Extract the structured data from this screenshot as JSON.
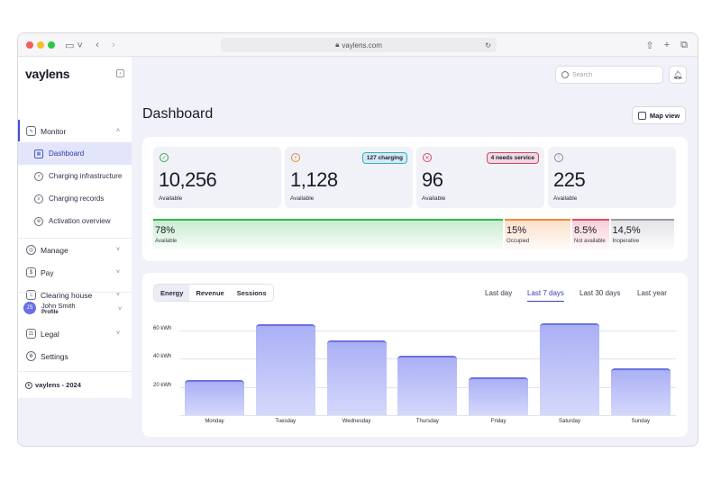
{
  "browser": {
    "url": "vaylens.com"
  },
  "sidebar": {
    "logo": "vaylens",
    "monitor": {
      "label": "Monitor"
    },
    "monitor_items": [
      {
        "label": "Dashboard"
      },
      {
        "label": "Charging infrastructure"
      },
      {
        "label": "Charging records"
      },
      {
        "label": "Activation overview"
      }
    ],
    "items": [
      {
        "label": "Manage"
      },
      {
        "label": "Pay"
      },
      {
        "label": "Clearing house"
      }
    ],
    "user": {
      "initials": "JS",
      "name": "John Smith",
      "role": "Profile"
    },
    "legal": {
      "label": "Legal"
    },
    "settings": {
      "label": "Settings"
    },
    "footer": "vaylens - 2024"
  },
  "header": {
    "search_placeholder": "Search",
    "title": "Dashboard",
    "map_view_label": "Map view"
  },
  "stats": [
    {
      "value": "10,256",
      "caption": "Available",
      "icon": "check-icon",
      "color": "#2fa84f"
    },
    {
      "value": "1,128",
      "caption": "Available",
      "icon": "charging-icon",
      "color": "#e08a3a",
      "badge": "127 charging",
      "badge_color": "#2bb3c8"
    },
    {
      "value": "96",
      "caption": "Available",
      "icon": "error-icon",
      "color": "#d9445a",
      "badge": "4 needs service",
      "badge_color": "#d9445a"
    },
    {
      "value": "225",
      "caption": "Available",
      "icon": "info-icon",
      "color": "#8a8a96"
    }
  ],
  "status_bar": [
    {
      "percent": "78%",
      "label": "Available",
      "share": 78,
      "color": "#2fb84f"
    },
    {
      "percent": "15%",
      "label": "Occupied",
      "share": 15,
      "color": "#f08a3a"
    },
    {
      "percent": "8.5%",
      "label": "Not available",
      "share": 8.5,
      "color": "#e04a66"
    },
    {
      "percent": "14,5%",
      "label": "Inoperative",
      "share": 14.5,
      "color": "#9a9aa6"
    }
  ],
  "chart_tabs": [
    "Energy",
    "Revenue",
    "Sessions"
  ],
  "active_chart_tab": "Energy",
  "ranges": [
    "Last day",
    "Last 7 days",
    "Last 30 days",
    "Last year"
  ],
  "active_range": "Last 7 days",
  "chart_data": {
    "type": "bar",
    "title": "Energy",
    "categories": [
      "Monday",
      "Tuesday",
      "Wednesday",
      "Thursday",
      "Friday",
      "Saturday",
      "Sunday"
    ],
    "values": [
      25,
      64,
      53,
      42,
      27,
      65,
      33
    ],
    "ylabel": "kWh",
    "yticks": [
      {
        "value": 20,
        "label": "20 kWh"
      },
      {
        "value": 40,
        "label": "40 kWh"
      },
      {
        "value": 60,
        "label": "60 kWh"
      }
    ],
    "ylim": [
      0,
      70
    ],
    "grid": true
  }
}
